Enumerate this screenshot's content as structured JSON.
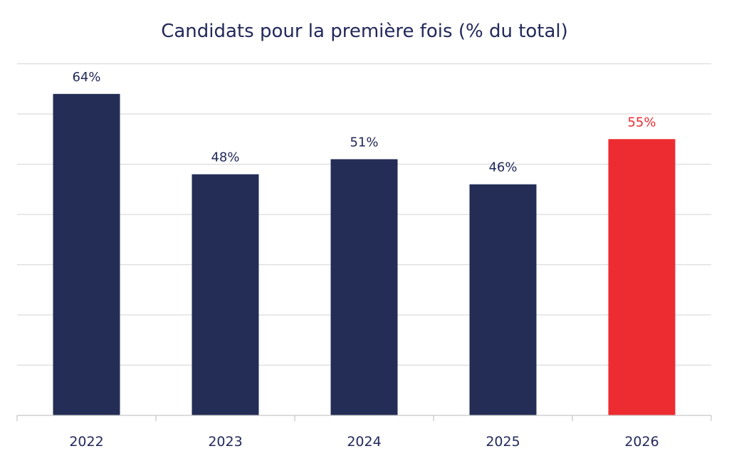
{
  "chart_data": {
    "type": "bar",
    "title": "Candidats pour la première fois (% du total)",
    "categories": [
      "2022",
      "2023",
      "2024",
      "2025",
      "2026"
    ],
    "values": [
      64,
      48,
      51,
      46,
      55
    ],
    "data_labels": [
      "64%",
      "48%",
      "51%",
      "46%",
      "55%"
    ],
    "ylim": [
      0,
      70
    ],
    "grid": true,
    "y_tick_labels_visible": false,
    "colors": {
      "default_bar": "#232d55",
      "highlight_bar": "#ed2c31",
      "default_label": "#22295a",
      "highlight_label": "#ed2c31"
    },
    "highlight_index": 4
  }
}
